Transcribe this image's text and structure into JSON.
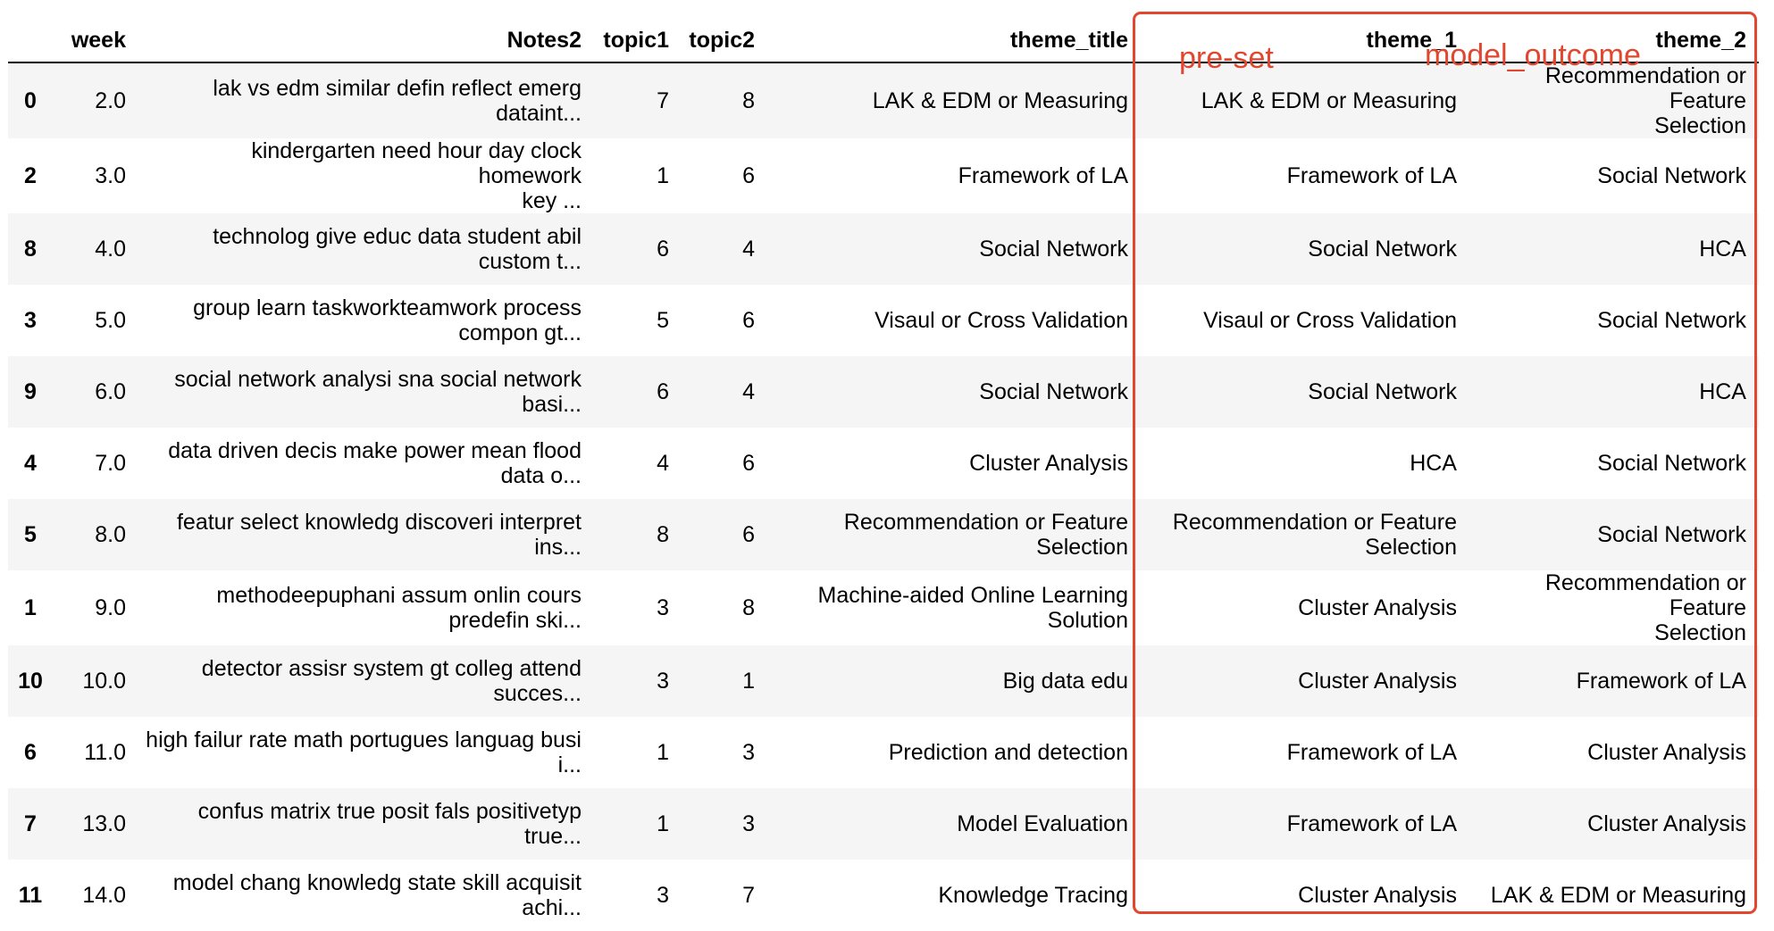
{
  "table": {
    "columns": [
      "",
      "week",
      "Notes2",
      "topic1",
      "topic2",
      "theme_title",
      "theme_1",
      "theme_2"
    ],
    "rows": [
      {
        "index": "0",
        "week": "2.0",
        "notes": [
          "lak vs edm similar defin reflect emerg",
          "dataint..."
        ],
        "topic1": "7",
        "topic2": "8",
        "theme_title": [
          "LAK & EDM or Measuring"
        ],
        "theme_1": [
          "LAK & EDM or Measuring"
        ],
        "theme_2": [
          "Recommendation or Feature",
          "Selection"
        ]
      },
      {
        "index": "2",
        "week": "3.0",
        "notes": [
          "kindergarten need hour day clock homework",
          "key ..."
        ],
        "topic1": "1",
        "topic2": "6",
        "theme_title": [
          "Framework of LA"
        ],
        "theme_1": [
          "Framework of LA"
        ],
        "theme_2": [
          "Social Network"
        ]
      },
      {
        "index": "8",
        "week": "4.0",
        "notes": [
          "technolog give educ data student abil",
          "custom t..."
        ],
        "topic1": "6",
        "topic2": "4",
        "theme_title": [
          "Social Network"
        ],
        "theme_1": [
          "Social Network"
        ],
        "theme_2": [
          "HCA"
        ]
      },
      {
        "index": "3",
        "week": "5.0",
        "notes": [
          "group learn taskworkteamwork process",
          "compon gt..."
        ],
        "topic1": "5",
        "topic2": "6",
        "theme_title": [
          "Visaul or Cross Validation"
        ],
        "theme_1": [
          "Visaul or Cross Validation"
        ],
        "theme_2": [
          "Social Network"
        ]
      },
      {
        "index": "9",
        "week": "6.0",
        "notes": [
          "social network analysi sna social network",
          "basi..."
        ],
        "topic1": "6",
        "topic2": "4",
        "theme_title": [
          "Social Network"
        ],
        "theme_1": [
          "Social Network"
        ],
        "theme_2": [
          "HCA"
        ]
      },
      {
        "index": "4",
        "week": "7.0",
        "notes": [
          "data driven decis make power mean flood",
          "data o..."
        ],
        "topic1": "4",
        "topic2": "6",
        "theme_title": [
          "Cluster Analysis"
        ],
        "theme_1": [
          "HCA"
        ],
        "theme_2": [
          "Social Network"
        ]
      },
      {
        "index": "5",
        "week": "8.0",
        "notes": [
          "featur select knowledg discoveri interpret",
          "ins..."
        ],
        "topic1": "8",
        "topic2": "6",
        "theme_title": [
          "Recommendation or Feature",
          "Selection"
        ],
        "theme_1": [
          "Recommendation or Feature",
          "Selection"
        ],
        "theme_2": [
          "Social Network"
        ]
      },
      {
        "index": "1",
        "week": "9.0",
        "notes": [
          "methodeepuphani assum onlin cours",
          "predefin ski..."
        ],
        "topic1": "3",
        "topic2": "8",
        "theme_title": [
          "Machine-aided Online Learning",
          "Solution"
        ],
        "theme_1": [
          "Cluster Analysis"
        ],
        "theme_2": [
          "Recommendation or Feature",
          "Selection"
        ]
      },
      {
        "index": "10",
        "week": "10.0",
        "notes": [
          "detector assisr system gt colleg attend",
          "succes..."
        ],
        "topic1": "3",
        "topic2": "1",
        "theme_title": [
          "Big data edu"
        ],
        "theme_1": [
          "Cluster Analysis"
        ],
        "theme_2": [
          "Framework of LA"
        ]
      },
      {
        "index": "6",
        "week": "11.0",
        "notes": [
          "high failur rate math portugues languag busi",
          "i..."
        ],
        "topic1": "1",
        "topic2": "3",
        "theme_title": [
          "Prediction and detection"
        ],
        "theme_1": [
          "Framework of LA"
        ],
        "theme_2": [
          "Cluster Analysis"
        ]
      },
      {
        "index": "7",
        "week": "13.0",
        "notes": [
          "confus matrix true posit fals positivetyp",
          "true..."
        ],
        "topic1": "1",
        "topic2": "3",
        "theme_title": [
          "Model Evaluation"
        ],
        "theme_1": [
          "Framework of LA"
        ],
        "theme_2": [
          "Cluster Analysis"
        ]
      },
      {
        "index": "11",
        "week": "14.0",
        "notes": [
          "model chang knowledg state skill acquisit",
          "achi..."
        ],
        "topic1": "3",
        "topic2": "7",
        "theme_title": [
          "Knowledge Tracing"
        ],
        "theme_1": [
          "Cluster Analysis"
        ],
        "theme_2": [
          "LAK & EDM or Measuring"
        ]
      }
    ]
  },
  "annotations": {
    "preset_label": "pre-set",
    "model_label": "model_outcome",
    "highlight_color": "#e2462f"
  },
  "colors": {
    "row_stripe": "#f5f5f5",
    "text": "#000000"
  }
}
